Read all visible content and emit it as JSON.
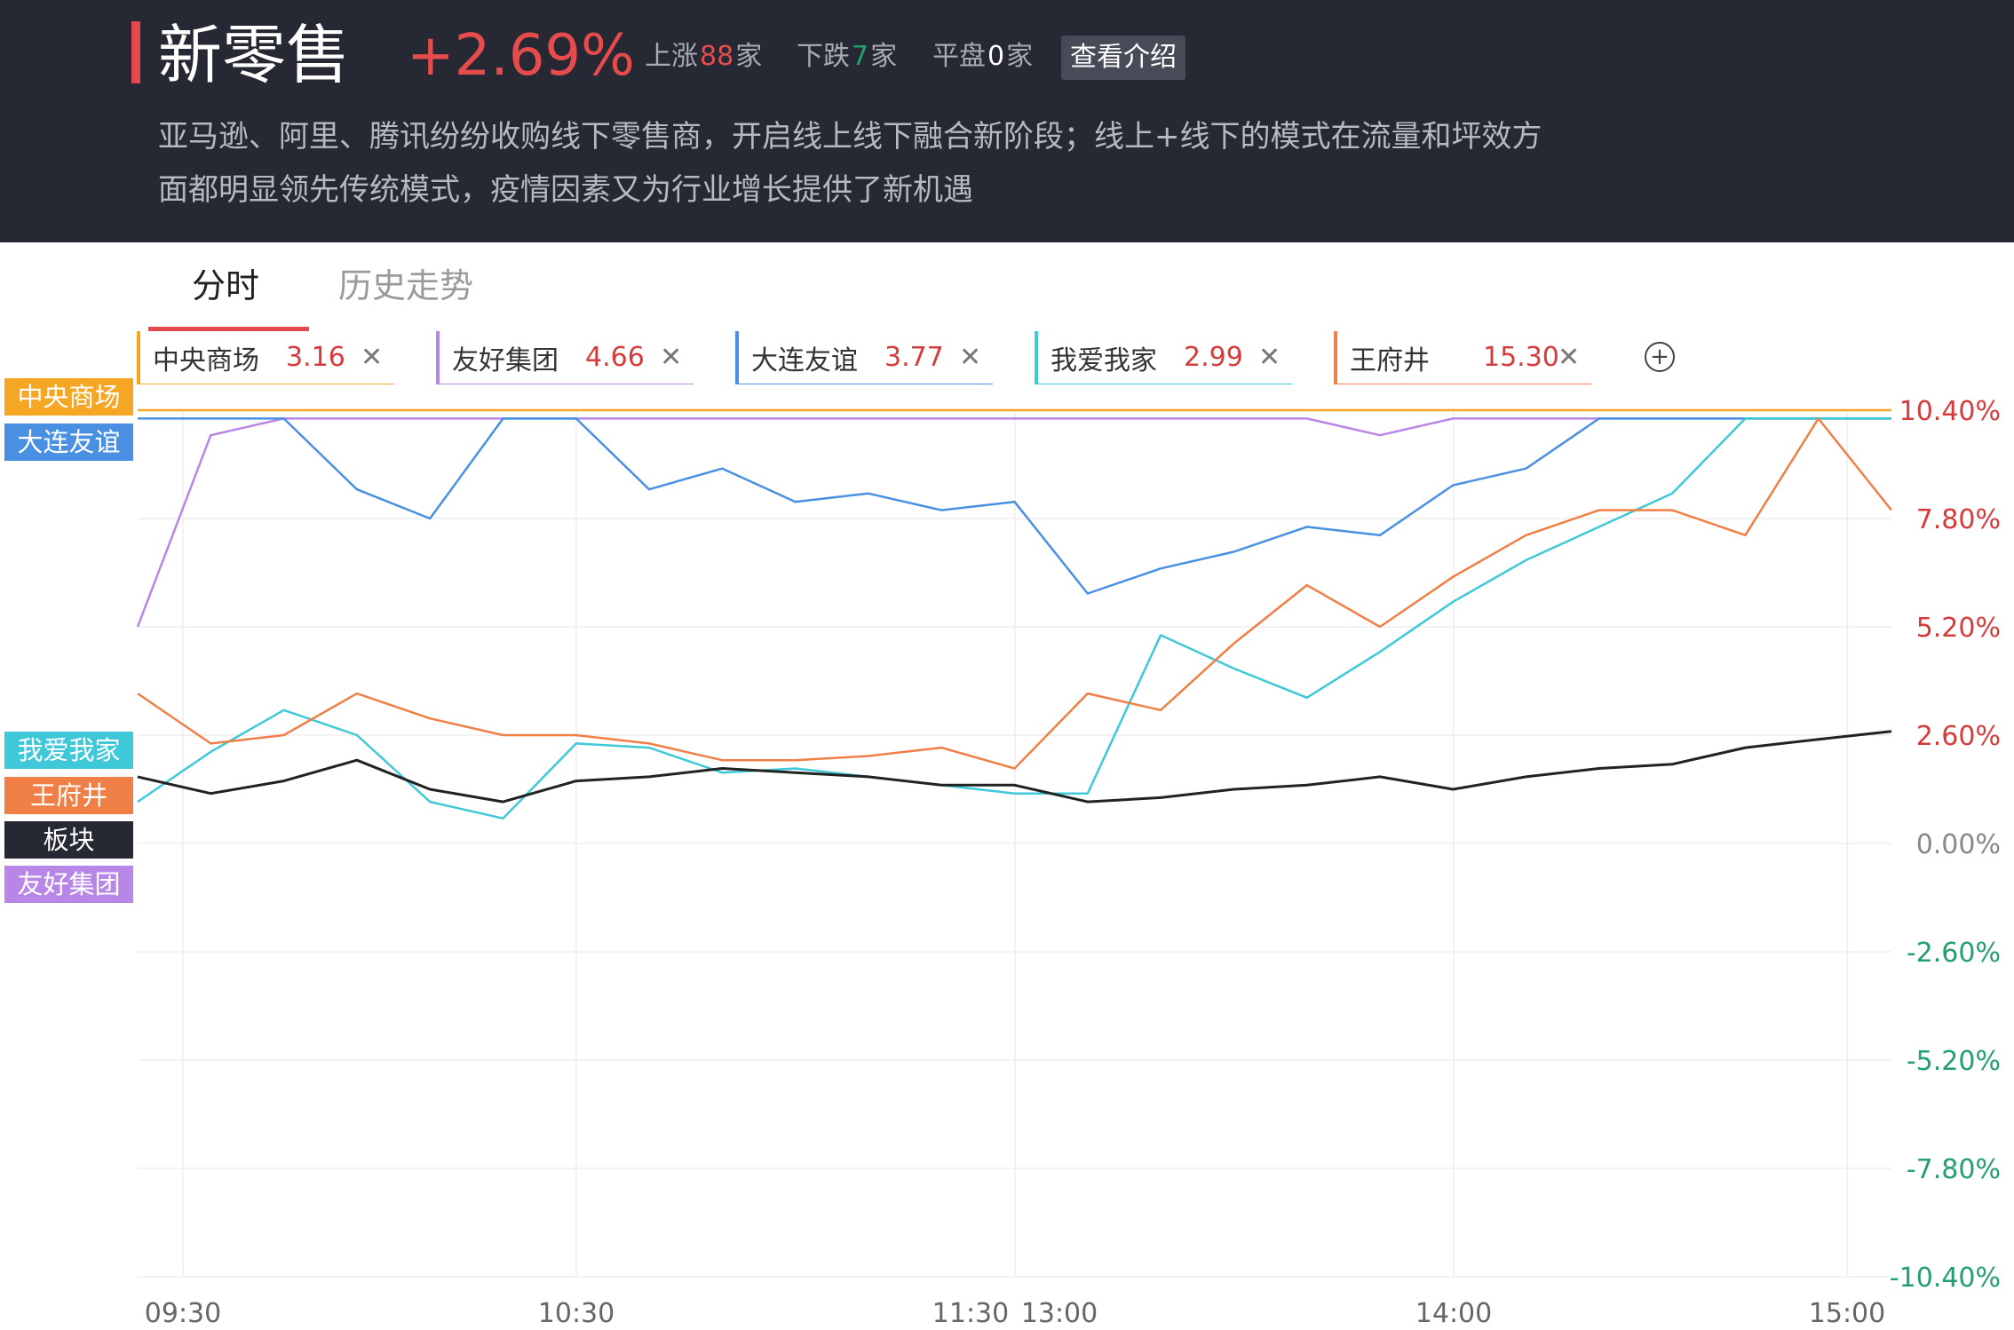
{
  "header": {
    "title": "新零售",
    "change": "+2.69%",
    "rise_label": "上涨",
    "rise_count": "88",
    "rise_unit": "家",
    "fall_label": "下跌",
    "fall_count": "7",
    "fall_unit": "家",
    "flat_label": "平盘",
    "flat_count": "0",
    "flat_unit": "家",
    "intro_button": "查看介绍",
    "description": "亚马逊、阿里、腾讯纷纷收购线下零售商，开启线上线下融合新阶段；线上+线下的模式在流量和坪效方面都明显领先传统模式，疫情因素又为行业增长提供了新机遇"
  },
  "tabs": {
    "active": "分时",
    "inactive": "历史走势"
  },
  "stocks": [
    {
      "name": "中央商场",
      "price": "3.16",
      "color": "#f5a623"
    },
    {
      "name": "友好集团",
      "price": "4.66",
      "color": "#b886e6"
    },
    {
      "name": "大连友谊",
      "price": "3.77",
      "color": "#4a90e2"
    },
    {
      "name": "我爱我家",
      "price": "2.99",
      "color": "#3fc8d8"
    },
    {
      "name": "王府井",
      "price": "15.30",
      "color": "#f07f45"
    }
  ],
  "close_icon": "close-icon",
  "add_icon": "plus-circle-icon",
  "legend_labels": {
    "zhongyang": "中央商场",
    "dalian": "大连友谊",
    "woai": "我爱我家",
    "wangfujing": "王府井",
    "bankuai": "板块",
    "youhao": "友好集团"
  },
  "chart_data": {
    "type": "line",
    "y_ticks": [
      "10.40%",
      "7.80%",
      "5.20%",
      "2.60%",
      "0.00%",
      "-2.60%",
      "-5.20%",
      "-7.80%",
      "-10.40%"
    ],
    "x_ticks": [
      "09:30",
      "10:30",
      "11:30",
      "13:00",
      "14:00",
      "15:00"
    ],
    "ylim": [
      -10.4,
      10.4
    ],
    "x": [
      "09:30",
      "09:40",
      "09:50",
      "10:00",
      "10:10",
      "10:20",
      "10:30",
      "10:40",
      "10:50",
      "11:00",
      "11:10",
      "11:20",
      "11:30",
      "13:10",
      "13:20",
      "13:30",
      "13:40",
      "13:50",
      "14:00",
      "14:10",
      "14:20",
      "14:30",
      "14:40",
      "14:50",
      "15:00"
    ],
    "series": [
      {
        "name": "中央商场",
        "color": "#f5a623",
        "values": [
          10.4,
          10.4,
          10.4,
          10.4,
          10.4,
          10.4,
          10.4,
          10.4,
          10.4,
          10.4,
          10.4,
          10.4,
          10.4,
          10.4,
          10.4,
          10.4,
          10.4,
          10.4,
          10.4,
          10.4,
          10.4,
          10.4,
          10.4,
          10.4,
          10.4
        ]
      },
      {
        "name": "友好集团",
        "color": "#b886e6",
        "values": [
          5.2,
          9.8,
          10.2,
          10.2,
          10.2,
          10.2,
          10.2,
          10.2,
          10.2,
          10.2,
          10.2,
          10.2,
          10.2,
          10.2,
          10.2,
          10.2,
          10.2,
          9.8,
          10.2,
          10.2,
          10.2,
          10.2,
          10.2,
          10.2,
          10.2
        ]
      },
      {
        "name": "大连友谊",
        "color": "#4a90e2",
        "values": [
          10.2,
          10.2,
          10.2,
          8.5,
          7.8,
          10.2,
          10.2,
          8.5,
          9.0,
          8.2,
          8.4,
          8.0,
          8.2,
          6.0,
          6.6,
          7.0,
          7.6,
          7.4,
          8.6,
          9.0,
          10.2,
          10.2,
          10.2,
          10.2,
          10.2
        ]
      },
      {
        "name": "我爱我家",
        "color": "#3fc8d8",
        "values": [
          1.0,
          2.2,
          3.2,
          2.6,
          1.0,
          0.6,
          2.4,
          2.3,
          1.7,
          1.8,
          1.6,
          1.4,
          1.2,
          1.2,
          5.0,
          4.2,
          3.5,
          4.6,
          5.8,
          6.8,
          7.6,
          8.4,
          10.2,
          10.2,
          10.2
        ]
      },
      {
        "name": "王府井",
        "color": "#f07f45",
        "values": [
          3.6,
          2.4,
          2.6,
          3.6,
          3.0,
          2.6,
          2.6,
          2.4,
          2.0,
          2.0,
          2.1,
          2.3,
          1.8,
          3.6,
          3.2,
          4.8,
          6.2,
          5.2,
          6.4,
          7.4,
          8.0,
          8.0,
          7.4,
          10.2,
          8.0
        ]
      },
      {
        "name": "板块",
        "color": "#222222",
        "values": [
          1.6,
          1.2,
          1.5,
          2.0,
          1.3,
          1.0,
          1.5,
          1.6,
          1.8,
          1.7,
          1.6,
          1.4,
          1.4,
          1.0,
          1.1,
          1.3,
          1.4,
          1.6,
          1.3,
          1.6,
          1.8,
          1.9,
          2.3,
          2.5,
          2.69
        ]
      }
    ]
  },
  "colors": {
    "header_bg": "#262833",
    "rise": "#e74c4c",
    "fall": "#22a06b",
    "tab_underline": "#e5484d"
  }
}
